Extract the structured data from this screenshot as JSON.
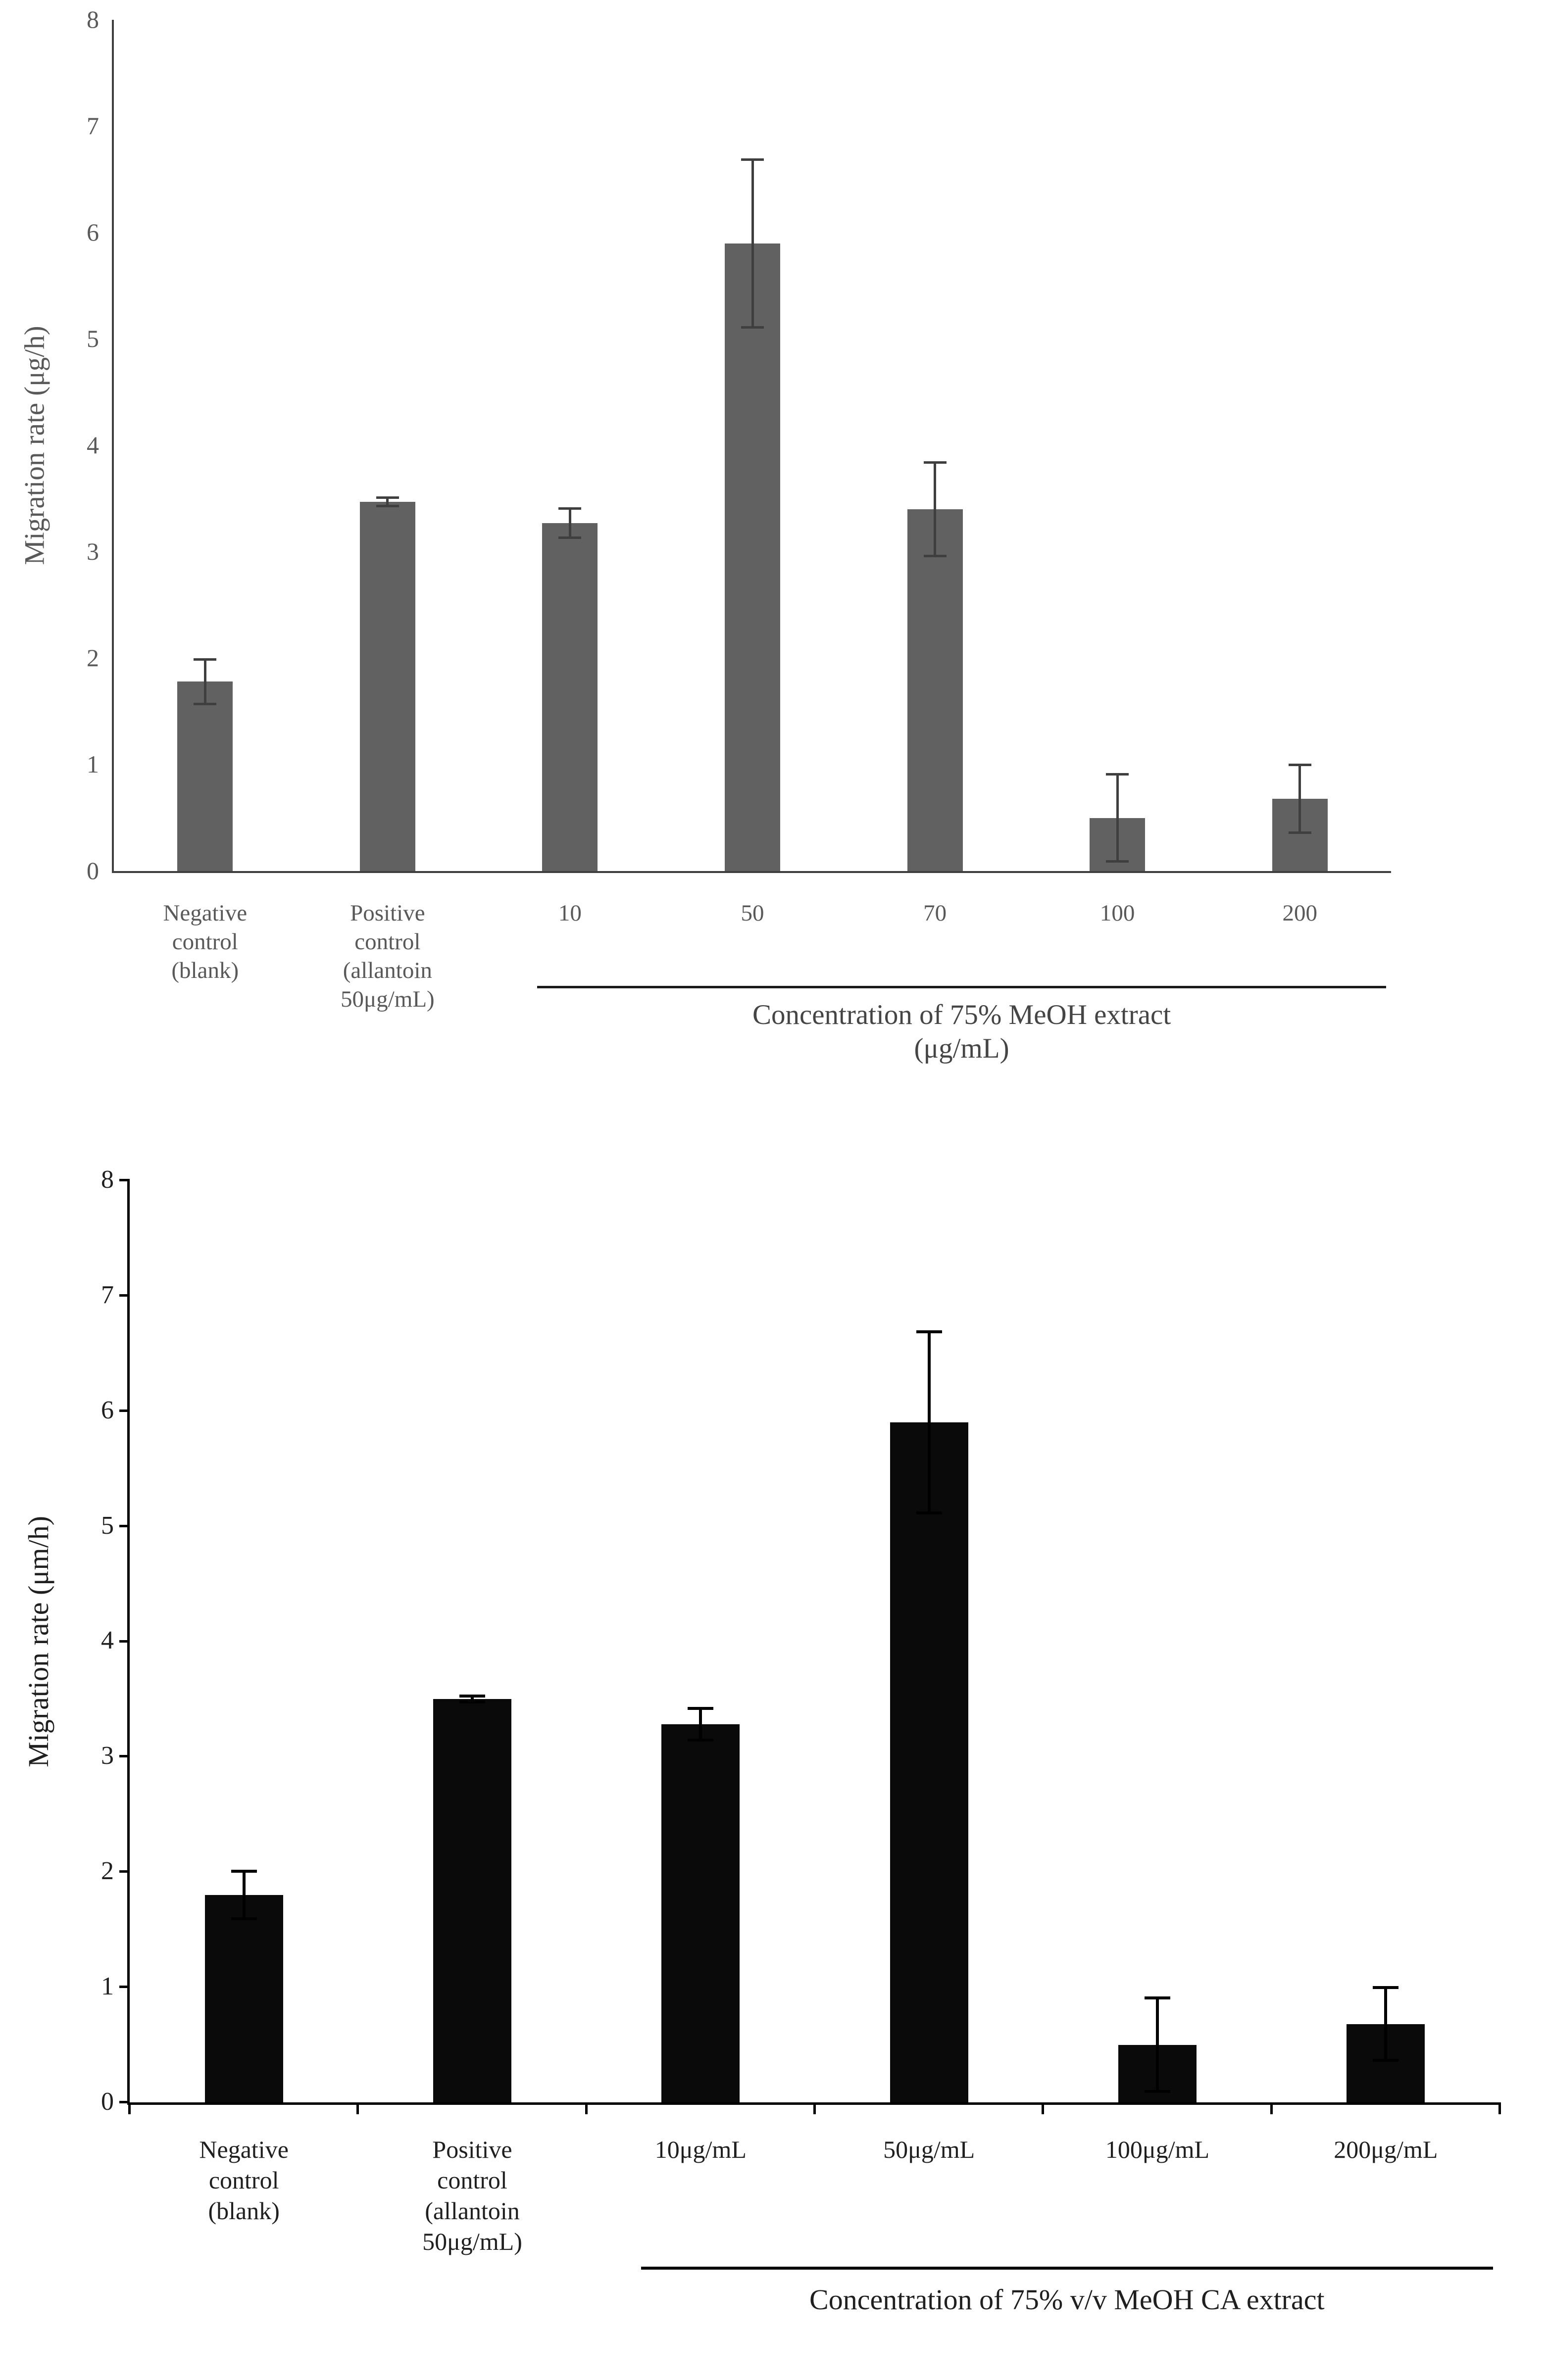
{
  "figure": {
    "description_top_ylabel": "Migration rate (μg/h)",
    "description_bottom_ylabel": "Migration rate (μm/h)"
  },
  "chart_data": [
    {
      "type": "bar",
      "title": "",
      "ylabel": "Migration rate (μg/h)",
      "xlabel": "",
      "ylim": [
        0,
        8
      ],
      "yticks": [
        0,
        1,
        2,
        3,
        4,
        5,
        6,
        7,
        8
      ],
      "grid": false,
      "legend_position": "none",
      "bar_color": "#616161",
      "error_color": "#3f3f3f",
      "categories": [
        "Negative\ncontrol\n(blank)",
        "Positive\ncontrol\n(allantoin\n50μg/mL)",
        "10",
        "50",
        "70",
        "100",
        "200"
      ],
      "values": [
        1.78,
        3.47,
        3.27,
        5.9,
        3.4,
        0.5,
        0.68
      ],
      "errors": [
        0.22,
        0.05,
        0.15,
        0.8,
        0.45,
        0.42,
        0.33
      ],
      "group_label_lines": [
        "Concentration of 75% MeOH extract",
        "(μg/mL)"
      ],
      "group_span_start_index": 2,
      "group_span_end_index": 6
    },
    {
      "type": "bar",
      "title": "",
      "ylabel": "Migration rate (μm/h)",
      "xlabel": "",
      "ylim": [
        0,
        8
      ],
      "yticks": [
        0,
        1,
        2,
        3,
        4,
        5,
        6,
        7,
        8
      ],
      "grid": false,
      "legend_position": "none",
      "bar_color": "#0a0a0a",
      "error_color": "#000000",
      "categories": [
        "Negative\ncontrol\n(blank)",
        "Positive\ncontrol\n(allantoin\n50μg/mL)",
        "10μg/mL",
        "50μg/mL",
        "100μg/mL",
        "200μg/mL"
      ],
      "values": [
        1.8,
        3.5,
        3.28,
        5.9,
        0.5,
        0.68
      ],
      "errors": [
        0.22,
        0.04,
        0.15,
        0.8,
        0.42,
        0.33
      ],
      "group_label_lines": [
        "Concentration of 75% v/v MeOH CA extract"
      ],
      "group_span_start_index": 2,
      "group_span_end_index": 5
    }
  ]
}
